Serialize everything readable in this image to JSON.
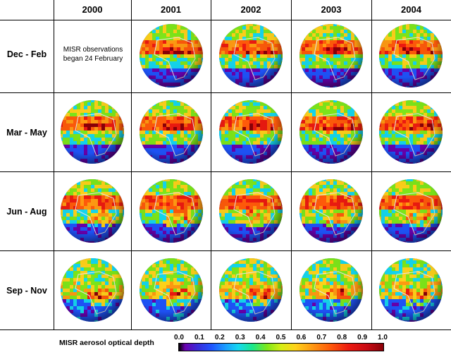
{
  "years": [
    "2000",
    "2001",
    "2002",
    "2003",
    "2004"
  ],
  "seasons": [
    "Dec - Feb",
    "Mar - May",
    "Jun - Aug",
    "Sep - Nov"
  ],
  "note_lines": [
    "MISR observations",
    "began 24 February"
  ],
  "legend": {
    "title": "MISR aerosol optical depth",
    "ticks": [
      "0.0",
      "0.1",
      "0.2",
      "0.3",
      "0.4",
      "0.5",
      "0.6",
      "0.7",
      "0.8",
      "0.9",
      "1.0"
    ],
    "colors": [
      "#000000",
      "#6a00b0",
      "#1f55ff",
      "#15d8f0",
      "#7ee81a",
      "#ffd21a",
      "#ff9a12",
      "#ff5a0a",
      "#ec1a10",
      "#8a0008"
    ]
  },
  "season_haze": [
    {
      "band": "north",
      "intensity": 0.75,
      "african_plume": "north"
    },
    {
      "band": "north",
      "intensity": 0.8,
      "african_plume": "north"
    },
    {
      "band": "north",
      "intensity": 0.85,
      "african_plume": "south"
    },
    {
      "band": "mixed",
      "intensity": 0.55,
      "african_plume": "south"
    }
  ]
}
